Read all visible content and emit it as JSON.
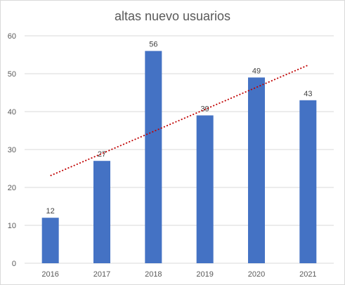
{
  "chart_data": {
    "type": "bar",
    "title": "altas nuevo usuarios",
    "categories": [
      "2016",
      "2017",
      "2018",
      "2019",
      "2020",
      "2021"
    ],
    "series": [
      {
        "values": [
          12,
          27,
          56,
          39,
          49,
          43
        ],
        "color": "#4472c4"
      }
    ],
    "trendline": {
      "type": "linear",
      "color": "#c00000",
      "style": "dotted"
    },
    "ylim": [
      0,
      60
    ],
    "yticks": [
      0,
      10,
      20,
      30,
      40,
      50,
      60
    ],
    "grid": true,
    "legend": "none",
    "xlabel": "",
    "ylabel": ""
  }
}
